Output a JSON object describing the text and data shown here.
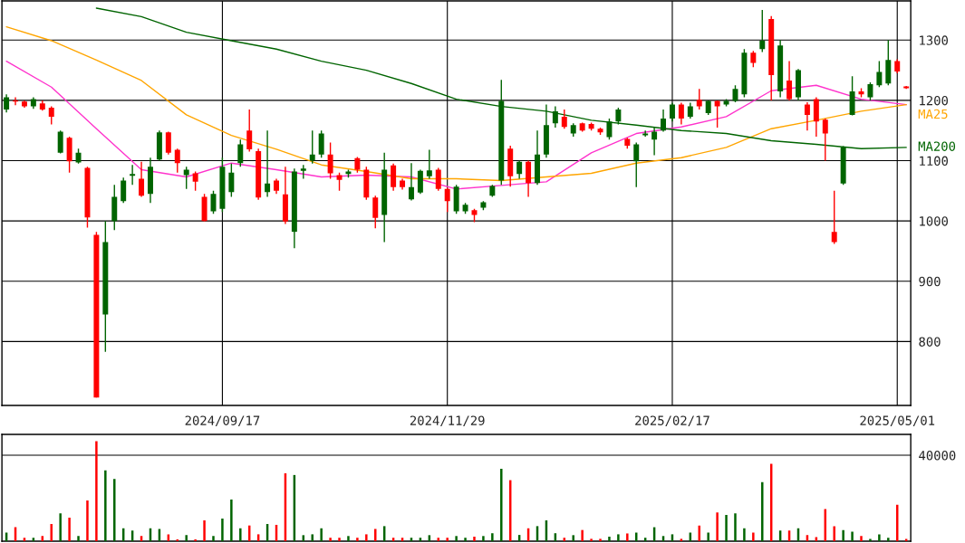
{
  "chart_data": [
    {
      "type": "candlestick",
      "categories": [
        null,
        null,
        null,
        null,
        null,
        null,
        null,
        null,
        null,
        null,
        null,
        null,
        null,
        null,
        null,
        null,
        null,
        null,
        null,
        null,
        null,
        null,
        null,
        null,
        "2024/09/17",
        null,
        null,
        null,
        null,
        null,
        null,
        null,
        null,
        null,
        null,
        null,
        null,
        null,
        null,
        null,
        null,
        null,
        null,
        null,
        null,
        null,
        null,
        null,
        null,
        "2024/11/29",
        null,
        null,
        null,
        null,
        null,
        null,
        null,
        null,
        null,
        null,
        null,
        null,
        null,
        null,
        null,
        null,
        null,
        null,
        null,
        null,
        null,
        null,
        null,
        null,
        "2025/02/17",
        null,
        null,
        null,
        null,
        null,
        null,
        null,
        null,
        null,
        null,
        null,
        null,
        null,
        null,
        null,
        null,
        null,
        null,
        null,
        null,
        null,
        null,
        null,
        null,
        "2025/05/01",
        null
      ],
      "ohlc": [
        [
          1185,
          1210,
          1180,
          1205
        ],
        [
          1200,
          1205,
          1192,
          1198
        ],
        [
          1198,
          1200,
          1188,
          1190
        ],
        [
          1190,
          1205,
          1186,
          1202
        ],
        [
          1195,
          1200,
          1183,
          1185
        ],
        [
          1188,
          1190,
          1160,
          1173
        ],
        [
          1113,
          1150,
          1112,
          1148
        ],
        [
          1138,
          1140,
          1080,
          1099
        ],
        [
          1097,
          1120,
          1095,
          1113
        ],
        [
          1088,
          1090,
          989,
          1006
        ],
        [
          977,
          982,
          707,
          707
        ],
        [
          845,
          1000,
          783,
          965
        ],
        [
          1000,
          1060,
          985,
          1040
        ],
        [
          1033,
          1072,
          1030,
          1067
        ],
        [
          1075,
          1093,
          1060,
          1078
        ],
        [
          1070,
          1098,
          1040,
          1042
        ],
        [
          1045,
          1105,
          1030,
          1090
        ],
        [
          1102,
          1150,
          1100,
          1147
        ],
        [
          1147,
          1148,
          1110,
          1113
        ],
        [
          1118,
          1120,
          1080,
          1096
        ],
        [
          1076,
          1090,
          1053,
          1085
        ],
        [
          1079,
          1082,
          1050,
          1065
        ],
        [
          1040,
          1045,
          999,
          1000
        ],
        [
          1016,
          1050,
          1012,
          1045
        ],
        [
          1020,
          1105,
          1015,
          1090
        ],
        [
          1048,
          1095,
          1040,
          1080
        ],
        [
          1096,
          1135,
          1090,
          1127
        ],
        [
          1150,
          1185,
          1115,
          1119
        ],
        [
          1116,
          1120,
          1035,
          1039
        ],
        [
          1048,
          1150,
          1040,
          1062
        ],
        [
          1067,
          1070,
          1045,
          1050
        ],
        [
          1044,
          1090,
          995,
          999
        ],
        [
          982,
          1087,
          955,
          1082
        ],
        [
          1083,
          1093,
          1070,
          1087
        ],
        [
          1100,
          1150,
          1095,
          1110
        ],
        [
          1110,
          1150,
          1105,
          1145
        ],
        [
          1110,
          1130,
          1070,
          1079
        ],
        [
          1076,
          1080,
          1050,
          1068
        ],
        [
          1078,
          1085,
          1072,
          1082
        ],
        [
          1104,
          1106,
          1080,
          1085
        ],
        [
          1085,
          1090,
          1035,
          1039
        ],
        [
          1039,
          1042,
          988,
          1005
        ],
        [
          1010,
          1113,
          965,
          1085
        ],
        [
          1092,
          1095,
          1050,
          1056
        ],
        [
          1067,
          1070,
          1052,
          1056
        ],
        [
          1036,
          1096,
          1034,
          1056
        ],
        [
          1047,
          1085,
          1045,
          1083
        ],
        [
          1074,
          1118,
          1070,
          1084
        ],
        [
          1085,
          1088,
          1050,
          1053
        ],
        [
          1053,
          1055,
          1015,
          1033
        ],
        [
          1016,
          1060,
          1012,
          1057
        ],
        [
          1016,
          1030,
          1012,
          1027
        ],
        [
          1018,
          1020,
          998,
          1010
        ],
        [
          1022,
          1033,
          1018,
          1031
        ],
        [
          1042,
          1060,
          1040,
          1058
        ],
        [
          1067,
          1234,
          1060,
          1199
        ],
        [
          1120,
          1125,
          1057,
          1074
        ],
        [
          1078,
          1100,
          1070,
          1098
        ],
        [
          1098,
          1100,
          1040,
          1063
        ],
        [
          1063,
          1150,
          1060,
          1110
        ],
        [
          1110,
          1193,
          1105,
          1159
        ],
        [
          1162,
          1190,
          1155,
          1182
        ],
        [
          1173,
          1185,
          1153,
          1156
        ],
        [
          1145,
          1162,
          1140,
          1159
        ],
        [
          1162,
          1163,
          1148,
          1150
        ],
        [
          1161,
          1163,
          1150,
          1153
        ],
        [
          1153,
          1155,
          1143,
          1147
        ],
        [
          1139,
          1170,
          1135,
          1165
        ],
        [
          1165,
          1188,
          1160,
          1185
        ],
        [
          1136,
          1138,
          1120,
          1125
        ],
        [
          1099,
          1130,
          1056,
          1127
        ],
        [
          1142,
          1150,
          1140,
          1145
        ],
        [
          1135,
          1155,
          1109,
          1148
        ],
        [
          1150,
          1185,
          1148,
          1170
        ],
        [
          1170,
          1196,
          1165,
          1193
        ],
        [
          1193,
          1196,
          1160,
          1170
        ],
        [
          1173,
          1196,
          1170,
          1190
        ],
        [
          1201,
          1219,
          1185,
          1190
        ],
        [
          1179,
          1200,
          1176,
          1199
        ],
        [
          1199,
          1200,
          1155,
          1190
        ],
        [
          1193,
          1202,
          1190,
          1199
        ],
        [
          1199,
          1225,
          1197,
          1219
        ],
        [
          1210,
          1285,
          1205,
          1279
        ],
        [
          1279,
          1282,
          1255,
          1262
        ],
        [
          1285,
          1350,
          1280,
          1299
        ],
        [
          1335,
          1340,
          1200,
          1242
        ],
        [
          1215,
          1300,
          1205,
          1291
        ],
        [
          1233,
          1265,
          1200,
          1202
        ],
        [
          1205,
          1252,
          1200,
          1250
        ],
        [
          1193,
          1197,
          1150,
          1176
        ],
        [
          1202,
          1205,
          1140,
          1165
        ],
        [
          1168,
          1170,
          1100,
          1145
        ],
        [
          982,
          1050,
          962,
          965
        ],
        [
          1062,
          1124,
          1060,
          1122
        ],
        [
          1176,
          1240,
          1175,
          1215
        ],
        [
          1215,
          1220,
          1205,
          1210
        ],
        [
          1205,
          1230,
          1200,
          1227
        ],
        [
          1225,
          1265,
          1222,
          1247
        ],
        [
          1228,
          1300,
          1225,
          1267
        ],
        [
          1265,
          1268,
          1245,
          1248
        ],
        [
          1223,
          1224,
          1219,
          1220
        ]
      ],
      "colors": [
        "#006400",
        "#ff0000",
        "#ff0000",
        "#006400",
        "#ff0000",
        "#ff0000",
        "#006400",
        "#ff0000",
        "#006400",
        "#ff0000",
        "#ff0000",
        "#006400",
        "#006400",
        "#006400",
        "#006400",
        "#ff0000",
        "#006400",
        "#006400",
        "#ff0000",
        "#ff0000",
        "#006400",
        "#ff0000",
        "#ff0000",
        "#006400",
        "#006400",
        "#006400",
        "#006400",
        "#ff0000",
        "#ff0000",
        "#006400",
        "#ff0000",
        "#ff0000",
        "#006400",
        "#006400",
        "#006400",
        "#006400",
        "#ff0000",
        "#ff0000",
        "#006400",
        "#ff0000",
        "#ff0000",
        "#ff0000",
        "#006400",
        "#ff0000",
        "#ff0000",
        "#006400",
        "#006400",
        "#006400",
        "#ff0000",
        "#ff0000",
        "#006400",
        "#006400",
        "#ff0000",
        "#006400",
        "#006400",
        "#006400",
        "#ff0000",
        "#006400",
        "#ff0000",
        "#006400",
        "#006400",
        "#006400",
        "#ff0000",
        "#006400",
        "#ff0000",
        "#ff0000",
        "#ff0000",
        "#006400",
        "#006400",
        "#ff0000",
        "#006400",
        "#006400",
        "#006400",
        "#006400",
        "#006400",
        "#ff0000",
        "#006400",
        "#ff0000",
        "#006400",
        "#ff0000",
        "#006400",
        "#006400",
        "#006400",
        "#ff0000",
        "#006400",
        "#ff0000",
        "#006400",
        "#ff0000",
        "#006400",
        "#ff0000",
        "#ff0000",
        "#ff0000",
        "#ff0000",
        "#006400",
        "#006400",
        "#ff0000",
        "#006400",
        "#006400",
        "#006400",
        "#ff0000",
        "#ff0000"
      ],
      "series": [
        {
          "type": "line",
          "color": "#ff33cc",
          "values": [
            1265,
            null,
            null,
            null,
            null,
            1222,
            null,
            null,
            null,
            null,
            1153,
            null,
            null,
            null,
            null,
            1085,
            null,
            null,
            null,
            null,
            1073,
            null,
            null,
            null,
            null,
            1096,
            null,
            null,
            null,
            null,
            1085,
            null,
            null,
            null,
            null,
            1073,
            null,
            null,
            null,
            null,
            1076,
            null,
            null,
            null,
            null,
            1073,
            null,
            null,
            null,
            null,
            1053,
            null,
            null,
            null,
            null,
            1059,
            null,
            null,
            null,
            null,
            1065,
            null,
            null,
            null,
            null,
            1113,
            null,
            null,
            null,
            null,
            1145,
            null,
            null,
            null,
            null,
            1156,
            null,
            null,
            null,
            null,
            1173,
            null,
            null,
            null,
            null,
            1216,
            null,
            null,
            null,
            null,
            1225,
            null,
            null,
            null,
            null,
            1202,
            null,
            null,
            null,
            null,
            1193
          ]
        },
        {
          "type": "line",
          "name": "MA25",
          "color": "#ffa500",
          "values": [
            1322,
            null,
            null,
            null,
            null,
            1299,
            null,
            null,
            null,
            null,
            1267,
            null,
            null,
            null,
            null,
            1233,
            null,
            null,
            null,
            null,
            1176,
            null,
            null,
            null,
            null,
            1142,
            null,
            null,
            null,
            null,
            1119,
            null,
            null,
            null,
            null,
            1093,
            null,
            null,
            null,
            null,
            1082,
            null,
            null,
            null,
            null,
            1070,
            null,
            null,
            null,
            null,
            1070,
            null,
            null,
            null,
            null,
            1067,
            null,
            null,
            null,
            null,
            1073,
            null,
            null,
            null,
            null,
            1079,
            null,
            null,
            null,
            null,
            1096,
            null,
            null,
            null,
            null,
            1105,
            null,
            null,
            null,
            null,
            1122,
            null,
            null,
            null,
            null,
            1153,
            null,
            null,
            null,
            null,
            1167,
            null,
            null,
            null,
            null,
            1182,
            null,
            null,
            null,
            null,
            1193
          ]
        },
        {
          "type": "line",
          "name": "MA200",
          "color": "#006400",
          "values": [
            null,
            null,
            null,
            null,
            null,
            null,
            null,
            null,
            null,
            null,
            1353,
            null,
            null,
            null,
            null,
            1339,
            null,
            null,
            null,
            null,
            1313,
            null,
            null,
            null,
            null,
            1299,
            null,
            null,
            null,
            null,
            1285,
            null,
            null,
            null,
            null,
            1265,
            null,
            null,
            null,
            null,
            1250,
            null,
            null,
            null,
            null,
            1228,
            null,
            null,
            null,
            null,
            1202,
            null,
            null,
            null,
            null,
            1190,
            null,
            null,
            null,
            null,
            1182,
            null,
            null,
            null,
            null,
            1167,
            null,
            null,
            null,
            null,
            1159,
            null,
            null,
            null,
            null,
            1150,
            null,
            null,
            null,
            null,
            1145,
            null,
            null,
            null,
            null,
            1133,
            null,
            null,
            null,
            null,
            1127,
            null,
            null,
            null,
            null,
            1120,
            null,
            null,
            null,
            null,
            1122
          ]
        }
      ],
      "ylim": [
        694,
        1365
      ],
      "yticks": [
        800,
        900,
        1000,
        1100,
        1200,
        1300
      ],
      "grid": true
    },
    {
      "type": "bar",
      "categories": [
        null,
        null,
        null,
        null,
        null,
        null,
        null,
        null,
        null,
        null,
        null,
        null,
        null,
        null,
        null,
        null,
        null,
        null,
        null,
        null,
        null,
        null,
        null,
        null,
        null,
        null,
        null,
        null,
        null,
        null,
        null,
        null,
        null,
        null,
        null,
        null,
        null,
        null,
        null,
        null,
        null,
        null,
        null,
        null,
        null,
        null,
        null,
        null,
        null,
        null,
        null,
        null,
        null,
        null,
        null,
        null,
        null,
        null,
        null,
        null,
        null,
        null,
        null,
        null,
        null,
        null,
        null,
        null,
        null,
        null,
        null,
        null,
        null,
        null,
        null,
        null,
        null,
        null,
        null,
        null,
        null,
        null,
        null,
        null,
        null,
        null,
        null,
        null,
        null,
        null,
        null,
        null,
        null,
        null,
        null,
        null,
        null,
        null,
        null,
        null,
        null
      ],
      "values": [
        4000,
        6500,
        1600,
        1600,
        2400,
        8000,
        13000,
        11000,
        2400,
        19000,
        46500,
        33000,
        29000,
        6000,
        5000,
        2400,
        6000,
        5700,
        3200,
        800,
        2800,
        800,
        9700,
        2400,
        10500,
        19400,
        6000,
        7300,
        3200,
        8000,
        7600,
        31600,
        30800,
        2800,
        3200,
        6000,
        1600,
        1600,
        2400,
        1600,
        3200,
        5700,
        7000,
        1600,
        1600,
        1600,
        1600,
        2800,
        1600,
        1600,
        2400,
        1600,
        2100,
        2400,
        3700,
        33700,
        28400,
        2900,
        6000,
        7000,
        9700,
        3700,
        1600,
        2800,
        5200,
        1100,
        1100,
        2100,
        3200,
        3600,
        4000,
        1600,
        6500,
        2400,
        3200,
        1100,
        4000,
        7300,
        4000,
        13400,
        12200,
        13000,
        6000,
        4000,
        27500,
        36000,
        4900,
        4900,
        6000,
        2800,
        1900,
        15000,
        7000,
        5200,
        4400,
        2400,
        1100,
        3200,
        1600,
        17000,
        1100
      ],
      "colors": [
        "#006400",
        "#ff0000",
        "#ff0000",
        "#006400",
        "#ff0000",
        "#ff0000",
        "#006400",
        "#ff0000",
        "#006400",
        "#ff0000",
        "#ff0000",
        "#006400",
        "#006400",
        "#006400",
        "#006400",
        "#ff0000",
        "#006400",
        "#006400",
        "#ff0000",
        "#ff0000",
        "#006400",
        "#ff0000",
        "#ff0000",
        "#006400",
        "#006400",
        "#006400",
        "#006400",
        "#ff0000",
        "#ff0000",
        "#006400",
        "#ff0000",
        "#ff0000",
        "#006400",
        "#006400",
        "#006400",
        "#006400",
        "#ff0000",
        "#ff0000",
        "#006400",
        "#ff0000",
        "#ff0000",
        "#ff0000",
        "#006400",
        "#ff0000",
        "#ff0000",
        "#006400",
        "#006400",
        "#006400",
        "#ff0000",
        "#ff0000",
        "#006400",
        "#006400",
        "#ff0000",
        "#006400",
        "#006400",
        "#006400",
        "#ff0000",
        "#006400",
        "#ff0000",
        "#006400",
        "#006400",
        "#006400",
        "#ff0000",
        "#006400",
        "#ff0000",
        "#ff0000",
        "#ff0000",
        "#006400",
        "#006400",
        "#ff0000",
        "#006400",
        "#006400",
        "#006400",
        "#006400",
        "#006400",
        "#ff0000",
        "#006400",
        "#ff0000",
        "#006400",
        "#ff0000",
        "#006400",
        "#006400",
        "#006400",
        "#ff0000",
        "#006400",
        "#ff0000",
        "#006400",
        "#ff0000",
        "#006400",
        "#ff0000",
        "#ff0000",
        "#ff0000",
        "#ff0000",
        "#006400",
        "#006400",
        "#ff0000",
        "#006400",
        "#006400",
        "#006400",
        "#ff0000",
        "#ff0000"
      ],
      "ylim": [
        0,
        49700
      ],
      "yticks": [
        40000
      ],
      "grid": "y",
      "tick_labels": "y"
    }
  ]
}
